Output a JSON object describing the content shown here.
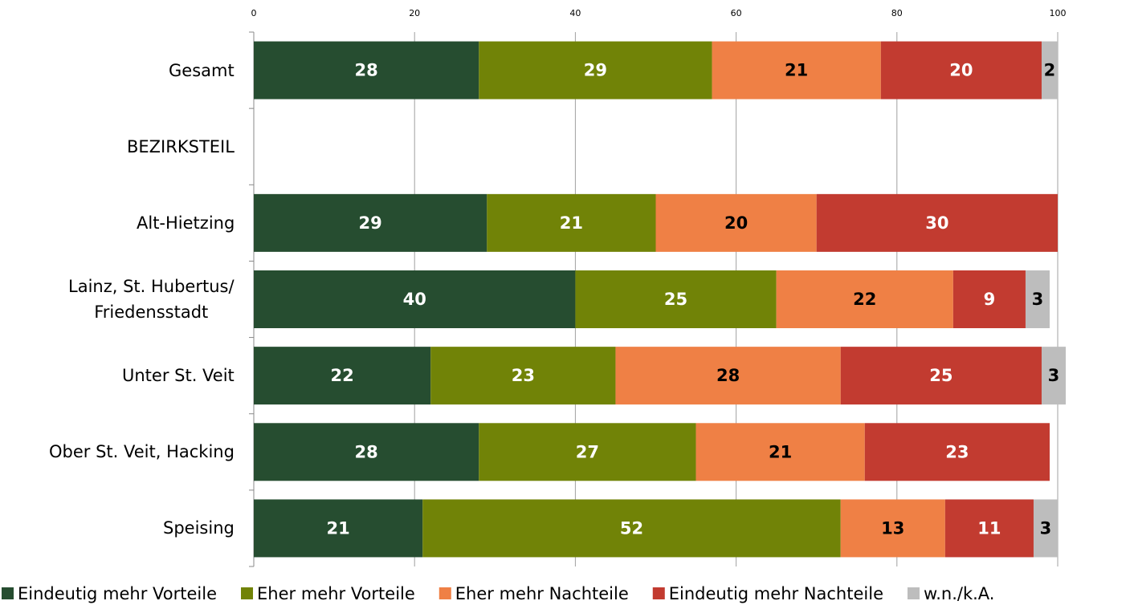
{
  "chart_data": {
    "type": "stacked-bar-horizontal",
    "categories": [
      "Gesamt",
      "BEZIRKSTEIL",
      "Alt-Hietzing",
      "Lainz, St. Hubertus/\nFriedensstadt",
      "Unter St. Veit",
      "Ober St. Veit, Hacking",
      "Speising"
    ],
    "series": [
      {
        "name": "Eindeutig mehr Vorteile",
        "color": "#264d30",
        "values": [
          28,
          null,
          29,
          40,
          22,
          28,
          21
        ]
      },
      {
        "name": "Eher mehr Vorteile",
        "color": "#718307",
        "values": [
          29,
          null,
          21,
          25,
          23,
          27,
          52
        ]
      },
      {
        "name": "Eher mehr Nachteile",
        "color": "#ef8045",
        "values": [
          21,
          null,
          20,
          22,
          28,
          21,
          13
        ]
      },
      {
        "name": "Eindeutig mehr Nachteile",
        "color": "#c23b30",
        "values": [
          20,
          null,
          30,
          9,
          25,
          23,
          11
        ]
      },
      {
        "name": "w.n./k.A.",
        "color": "#bdbdbd",
        "values": [
          2,
          null,
          null,
          3,
          3,
          null,
          3
        ]
      }
    ],
    "xlim": [
      0,
      100
    ],
    "xticks": [
      0,
      20,
      40,
      60,
      80,
      100
    ],
    "grid": true,
    "legend": "bottom"
  }
}
